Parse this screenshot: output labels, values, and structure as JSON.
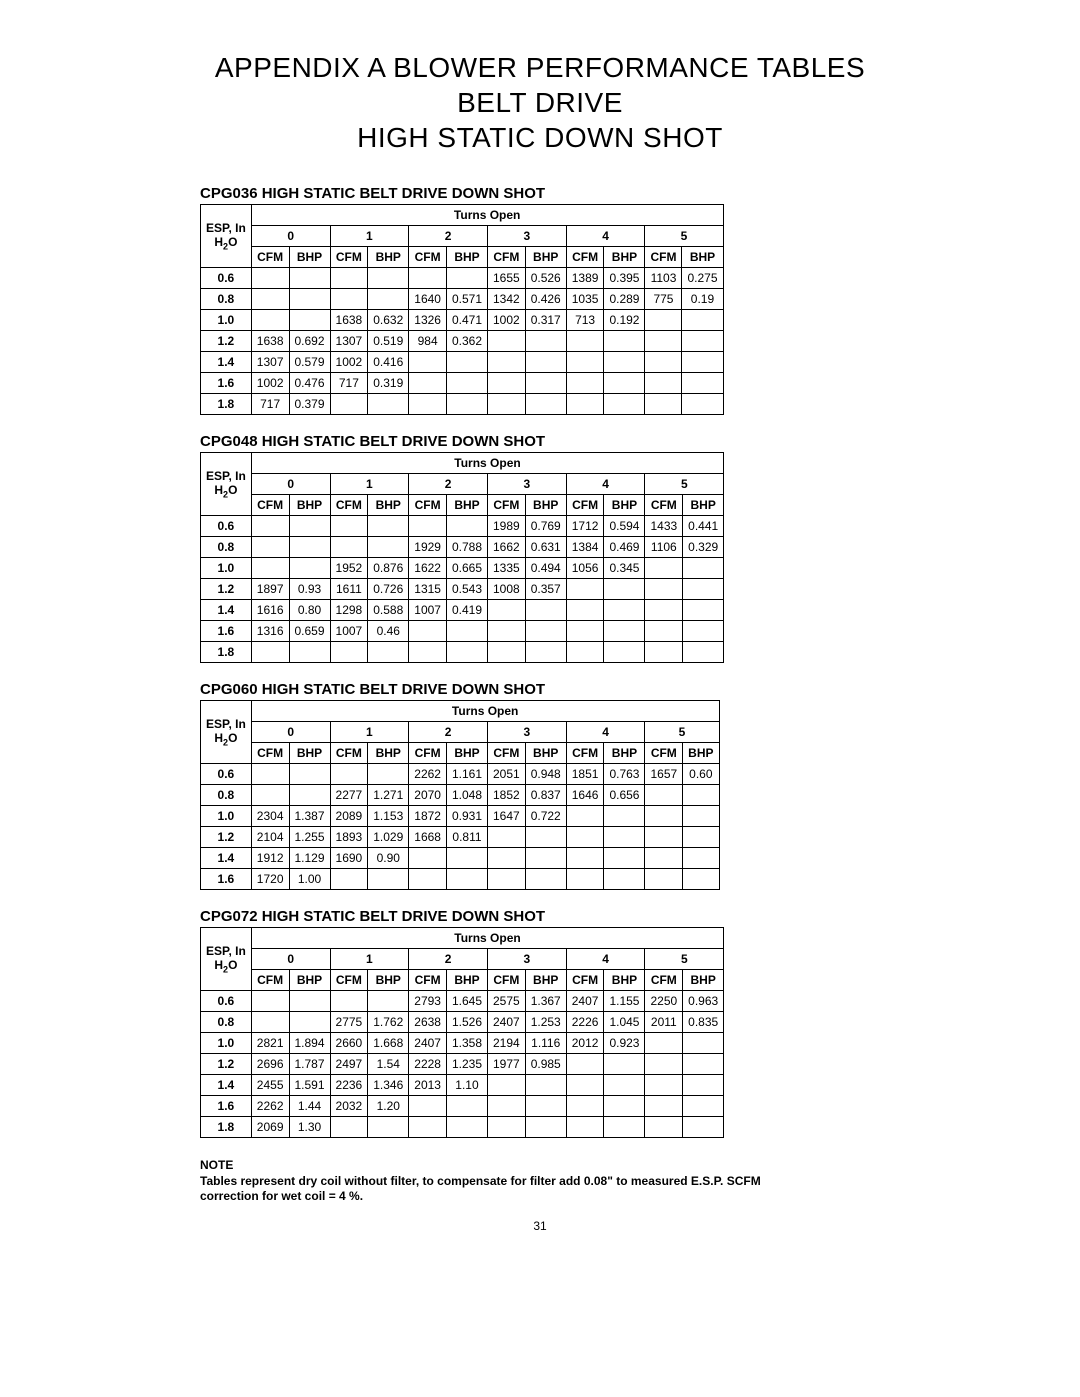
{
  "title": {
    "line1": "APPENDIX A BLOWER PERFORMANCE TABLES",
    "line2": "BELT DRIVE",
    "line3": "HIGH STATIC DOWN SHOT"
  },
  "shared": {
    "esp_label_top": "ESP, In",
    "esp_label_bottom": "H",
    "esp_label_sub": "2",
    "esp_label_tail": "O",
    "turns_open": "Turns Open",
    "turns": [
      "0",
      "1",
      "2",
      "3",
      "4",
      "5"
    ],
    "subcols": [
      "CFM",
      "BHP"
    ]
  },
  "tables": [
    {
      "caption": "CPG036 HIGH STATIC BELT DRIVE DOWN SHOT",
      "rows": [
        {
          "esp": "0.6",
          "cells": [
            "",
            "",
            "",
            "",
            "",
            "",
            "1655",
            "0.526",
            "1389",
            "0.395",
            "1103",
            "0.275"
          ]
        },
        {
          "esp": "0.8",
          "cells": [
            "",
            "",
            "",
            "",
            "1640",
            "0.571",
            "1342",
            "0.426",
            "1035",
            "0.289",
            "775",
            "0.19"
          ]
        },
        {
          "esp": "1.0",
          "cells": [
            "",
            "",
            "1638",
            "0.632",
            "1326",
            "0.471",
            "1002",
            "0.317",
            "713",
            "0.192",
            "",
            ""
          ]
        },
        {
          "esp": "1.2",
          "cells": [
            "1638",
            "0.692",
            "1307",
            "0.519",
            "984",
            "0.362",
            "",
            "",
            "",
            "",
            "",
            ""
          ]
        },
        {
          "esp": "1.4",
          "cells": [
            "1307",
            "0.579",
            "1002",
            "0.416",
            "",
            "",
            "",
            "",
            "",
            "",
            "",
            ""
          ]
        },
        {
          "esp": "1.6",
          "cells": [
            "1002",
            "0.476",
            "717",
            "0.319",
            "",
            "",
            "",
            "",
            "",
            "",
            "",
            ""
          ]
        },
        {
          "esp": "1.8",
          "cells": [
            "717",
            "0.379",
            "",
            "",
            "",
            "",
            "",
            "",
            "",
            "",
            "",
            ""
          ]
        }
      ]
    },
    {
      "caption": "CPG048 HIGH STATIC BELT DRIVE DOWN SHOT",
      "rows": [
        {
          "esp": "0.6",
          "cells": [
            "",
            "",
            "",
            "",
            "",
            "",
            "1989",
            "0.769",
            "1712",
            "0.594",
            "1433",
            "0.441"
          ]
        },
        {
          "esp": "0.8",
          "cells": [
            "",
            "",
            "",
            "",
            "1929",
            "0.788",
            "1662",
            "0.631",
            "1384",
            "0.469",
            "1106",
            "0.329"
          ]
        },
        {
          "esp": "1.0",
          "cells": [
            "",
            "",
            "1952",
            "0.876",
            "1622",
            "0.665",
            "1335",
            "0.494",
            "1056",
            "0.345",
            "",
            ""
          ]
        },
        {
          "esp": "1.2",
          "cells": [
            "1897",
            "0.93",
            "1611",
            "0.726",
            "1315",
            "0.543",
            "1008",
            "0.357",
            "",
            "",
            "",
            ""
          ]
        },
        {
          "esp": "1.4",
          "cells": [
            "1616",
            "0.80",
            "1298",
            "0.588",
            "1007",
            "0.419",
            "",
            "",
            "",
            "",
            "",
            ""
          ]
        },
        {
          "esp": "1.6",
          "cells": [
            "1316",
            "0.659",
            "1007",
            "0.46",
            "",
            "",
            "",
            "",
            "",
            "",
            "",
            ""
          ]
        },
        {
          "esp": "1.8",
          "cells": [
            "",
            "",
            "",
            "",
            "",
            "",
            "",
            "",
            "",
            "",
            "",
            ""
          ]
        }
      ]
    },
    {
      "caption": "CPG060 HIGH STATIC BELT DRIVE DOWN SHOT",
      "rows": [
        {
          "esp": "0.6",
          "cells": [
            "",
            "",
            "",
            "",
            "2262",
            "1.161",
            "2051",
            "0.948",
            "1851",
            "0.763",
            "1657",
            "0.60"
          ]
        },
        {
          "esp": "0.8",
          "cells": [
            "",
            "",
            "2277",
            "1.271",
            "2070",
            "1.048",
            "1852",
            "0.837",
            "1646",
            "0.656",
            "",
            ""
          ]
        },
        {
          "esp": "1.0",
          "cells": [
            "2304",
            "1.387",
            "2089",
            "1.153",
            "1872",
            "0.931",
            "1647",
            "0.722",
            "",
            "",
            "",
            ""
          ]
        },
        {
          "esp": "1.2",
          "cells": [
            "2104",
            "1.255",
            "1893",
            "1.029",
            "1668",
            "0.811",
            "",
            "",
            "",
            "",
            "",
            ""
          ]
        },
        {
          "esp": "1.4",
          "cells": [
            "1912",
            "1.129",
            "1690",
            "0.90",
            "",
            "",
            "",
            "",
            "",
            "",
            "",
            ""
          ]
        },
        {
          "esp": "1.6",
          "cells": [
            "1720",
            "1.00",
            "",
            "",
            "",
            "",
            "",
            "",
            "",
            "",
            "",
            ""
          ]
        }
      ]
    },
    {
      "caption": "CPG072 HIGH STATIC BELT DRIVE DOWN SHOT",
      "rows": [
        {
          "esp": "0.6",
          "cells": [
            "",
            "",
            "",
            "",
            "2793",
            "1.645",
            "2575",
            "1.367",
            "2407",
            "1.155",
            "2250",
            "0.963"
          ]
        },
        {
          "esp": "0.8",
          "cells": [
            "",
            "",
            "2775",
            "1.762",
            "2638",
            "1.526",
            "2407",
            "1.253",
            "2226",
            "1.045",
            "2011",
            "0.835"
          ]
        },
        {
          "esp": "1.0",
          "cells": [
            "2821",
            "1.894",
            "2660",
            "1.668",
            "2407",
            "1.358",
            "2194",
            "1.116",
            "2012",
            "0.923",
            "",
            ""
          ]
        },
        {
          "esp": "1.2",
          "cells": [
            "2696",
            "1.787",
            "2497",
            "1.54",
            "2228",
            "1.235",
            "1977",
            "0.985",
            "",
            "",
            "",
            ""
          ]
        },
        {
          "esp": "1.4",
          "cells": [
            "2455",
            "1.591",
            "2236",
            "1.346",
            "2013",
            "1.10",
            "",
            "",
            "",
            "",
            "",
            ""
          ]
        },
        {
          "esp": "1.6",
          "cells": [
            "2262",
            "1.44",
            "2032",
            "1.20",
            "",
            "",
            "",
            "",
            "",
            "",
            "",
            ""
          ]
        },
        {
          "esp": "1.8",
          "cells": [
            "2069",
            "1.30",
            "",
            "",
            "",
            "",
            "",
            "",
            "",
            "",
            "",
            ""
          ]
        }
      ]
    }
  ],
  "note": {
    "heading": "NOTE",
    "body": "Tables represent dry coil without filter, to compensate for filter add 0.08\" to measured E.S.P. SCFM correction for wet coil = 4 %."
  },
  "page_number": "31"
}
